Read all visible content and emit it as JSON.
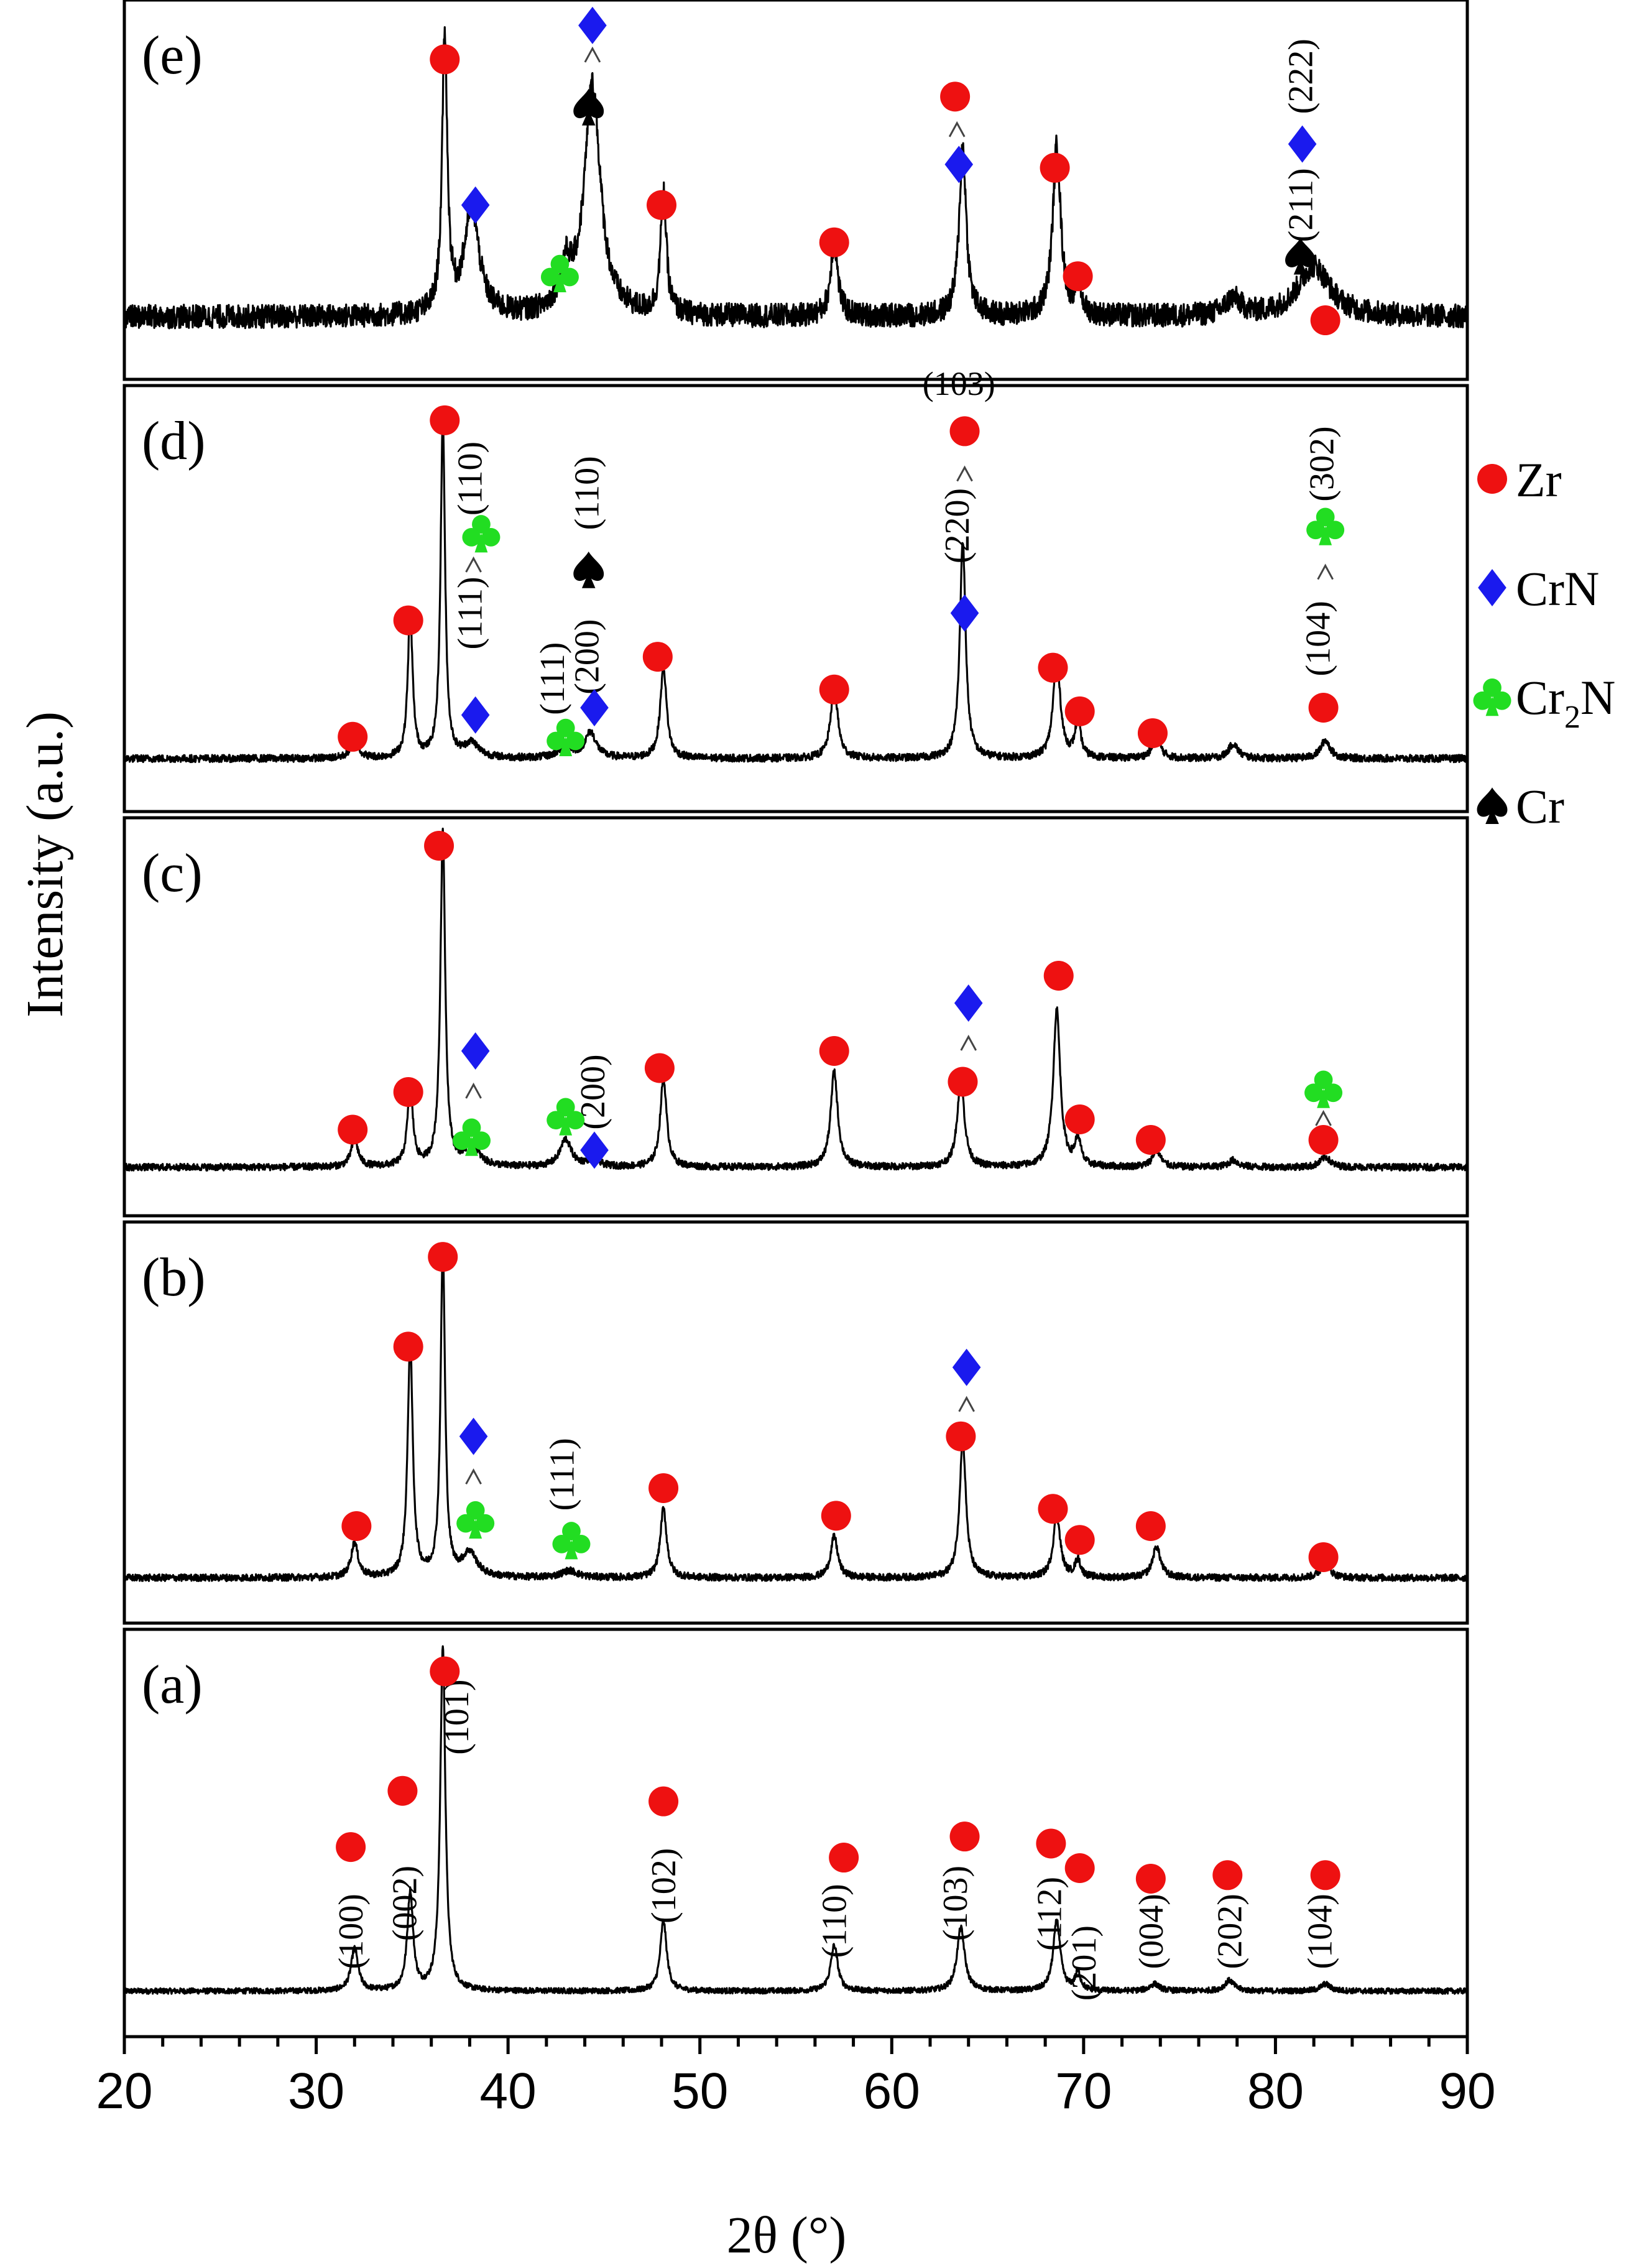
{
  "chart_data": {
    "type": "line",
    "title": "",
    "xlabel": "2θ (°)",
    "ylabel": "Intensity (a.u.)",
    "xlim": [
      20,
      90
    ],
    "xticks": [
      20,
      30,
      40,
      50,
      60,
      70,
      80,
      90
    ],
    "colors": {
      "Zr": "#ee1111",
      "CrN": "#1a1aee",
      "Cr2N": "#22dd22",
      "Cr": "#000000",
      "line": "#000000"
    },
    "legend": {
      "placement": "right",
      "entries": [
        {
          "phase": "Zr",
          "label": "Zr",
          "symbol": "circle"
        },
        {
          "phase": "CrN",
          "label": "CrN",
          "symbol": "diamond"
        },
        {
          "phase": "Cr2N",
          "label": "Cr",
          "sub": "2",
          "tail": "N",
          "symbol": "club"
        },
        {
          "phase": "Cr",
          "label": "Cr",
          "symbol": "spade"
        }
      ]
    },
    "panels": [
      {
        "id": "a",
        "label": "(a)",
        "baseline": 0.05,
        "noise": 0.008,
        "peaks": [
          [
            32.0,
            0.12,
            0.22
          ],
          [
            34.9,
            0.28,
            0.18
          ],
          [
            36.6,
            0.98,
            0.16
          ],
          [
            48.1,
            0.2,
            0.2
          ],
          [
            57.0,
            0.13,
            0.22
          ],
          [
            63.6,
            0.18,
            0.24
          ],
          [
            68.6,
            0.2,
            0.22
          ],
          [
            69.7,
            0.05,
            0.18
          ],
          [
            73.7,
            0.02,
            0.3
          ],
          [
            77.6,
            0.03,
            0.3
          ],
          [
            82.6,
            0.02,
            0.3
          ]
        ],
        "markers": [
          {
            "x": 31.8,
            "y": 0.46,
            "phase": "Zr"
          },
          {
            "x": 34.5,
            "y": 0.62,
            "phase": "Zr"
          },
          {
            "x": 36.7,
            "y": 0.96,
            "phase": "Zr"
          },
          {
            "x": 48.1,
            "y": 0.59,
            "phase": "Zr"
          },
          {
            "x": 57.5,
            "y": 0.43,
            "phase": "Zr"
          },
          {
            "x": 63.8,
            "y": 0.49,
            "phase": "Zr"
          },
          {
            "x": 68.3,
            "y": 0.47,
            "phase": "Zr"
          },
          {
            "x": 69.8,
            "y": 0.4,
            "phase": "Zr"
          },
          {
            "x": 73.5,
            "y": 0.37,
            "phase": "Zr"
          },
          {
            "x": 77.5,
            "y": 0.38,
            "phase": "Zr"
          },
          {
            "x": 82.6,
            "y": 0.38,
            "phase": "Zr"
          }
        ],
        "labels": [
          {
            "x": 32.0,
            "y": 0.22,
            "text": "(100)"
          },
          {
            "x": 34.8,
            "y": 0.3,
            "text": "(002)"
          },
          {
            "x": 37.5,
            "y": 0.83,
            "text": "(101)"
          },
          {
            "x": 48.3,
            "y": 0.35,
            "text": "(102)"
          },
          {
            "x": 57.2,
            "y": 0.25,
            "text": "(110)"
          },
          {
            "x": 63.5,
            "y": 0.3,
            "text": "(103)"
          },
          {
            "x": 68.4,
            "y": 0.27,
            "text": "(112)"
          },
          {
            "x": 70.2,
            "y": 0.13,
            "text": "(201)"
          },
          {
            "x": 73.7,
            "y": 0.22,
            "text": "(004)"
          },
          {
            "x": 77.8,
            "y": 0.22,
            "text": "(202)"
          },
          {
            "x": 82.5,
            "y": 0.22,
            "text": "(104)"
          }
        ],
        "arrows": []
      },
      {
        "id": "b",
        "label": "(b)",
        "baseline": 0.05,
        "noise": 0.01,
        "peaks": [
          [
            32.0,
            0.1,
            0.22
          ],
          [
            34.9,
            0.68,
            0.16
          ],
          [
            36.6,
            0.95,
            0.14
          ],
          [
            38.0,
            0.07,
            0.45
          ],
          [
            43.2,
            0.02,
            0.5
          ],
          [
            48.1,
            0.2,
            0.2
          ],
          [
            57.0,
            0.12,
            0.22
          ],
          [
            63.7,
            0.4,
            0.2
          ],
          [
            68.6,
            0.18,
            0.22
          ],
          [
            69.7,
            0.05,
            0.18
          ],
          [
            73.8,
            0.09,
            0.25
          ],
          [
            82.6,
            0.04,
            0.3
          ]
        ],
        "markers": [
          {
            "x": 32.1,
            "y": 0.2,
            "phase": "Zr"
          },
          {
            "x": 34.8,
            "y": 0.72,
            "phase": "Zr"
          },
          {
            "x": 36.6,
            "y": 0.98,
            "phase": "Zr"
          },
          {
            "x": 38.2,
            "y": 0.46,
            "phase": "CrN"
          },
          {
            "x": 38.3,
            "y": 0.22,
            "phase": "Cr2N"
          },
          {
            "x": 43.3,
            "y": 0.16,
            "phase": "Cr2N"
          },
          {
            "x": 48.1,
            "y": 0.31,
            "phase": "Zr"
          },
          {
            "x": 57.1,
            "y": 0.23,
            "phase": "Zr"
          },
          {
            "x": 63.6,
            "y": 0.46,
            "phase": "Zr"
          },
          {
            "x": 63.9,
            "y": 0.66,
            "phase": "CrN"
          },
          {
            "x": 68.4,
            "y": 0.25,
            "phase": "Zr"
          },
          {
            "x": 69.8,
            "y": 0.16,
            "phase": "Zr"
          },
          {
            "x": 73.5,
            "y": 0.2,
            "phase": "Zr"
          },
          {
            "x": 82.5,
            "y": 0.11,
            "phase": "Zr"
          }
        ],
        "labels": [
          {
            "x": 43.0,
            "y": 0.35,
            "text": "(111)"
          }
        ],
        "arrows": [
          {
            "x": 38.2,
            "y": 0.34
          },
          {
            "x": 63.9,
            "y": 0.55
          }
        ]
      },
      {
        "id": "c",
        "label": "(c)",
        "baseline": 0.06,
        "noise": 0.01,
        "peaks": [
          [
            32.0,
            0.08,
            0.22
          ],
          [
            34.9,
            0.22,
            0.18
          ],
          [
            36.6,
            0.98,
            0.15
          ],
          [
            38.1,
            0.06,
            0.45
          ],
          [
            43.0,
            0.08,
            0.35
          ],
          [
            44.4,
            0.02,
            0.4
          ],
          [
            48.1,
            0.26,
            0.2
          ],
          [
            57.0,
            0.28,
            0.22
          ],
          [
            63.6,
            0.26,
            0.22
          ],
          [
            68.6,
            0.46,
            0.22
          ],
          [
            69.7,
            0.08,
            0.18
          ],
          [
            73.8,
            0.05,
            0.25
          ],
          [
            77.8,
            0.02,
            0.3
          ],
          [
            82.6,
            0.03,
            0.3
          ]
        ],
        "markers": [
          {
            "x": 31.9,
            "y": 0.17,
            "phase": "Zr"
          },
          {
            "x": 34.8,
            "y": 0.28,
            "phase": "Zr"
          },
          {
            "x": 36.4,
            "y": 1.0,
            "phase": "Zr"
          },
          {
            "x": 38.3,
            "y": 0.4,
            "phase": "CrN"
          },
          {
            "x": 38.1,
            "y": 0.15,
            "phase": "Cr2N"
          },
          {
            "x": 43.0,
            "y": 0.21,
            "phase": "Cr2N"
          },
          {
            "x": 44.5,
            "y": 0.11,
            "phase": "CrN"
          },
          {
            "x": 47.9,
            "y": 0.35,
            "phase": "Zr"
          },
          {
            "x": 57.0,
            "y": 0.4,
            "phase": "Zr"
          },
          {
            "x": 63.7,
            "y": 0.31,
            "phase": "Zr"
          },
          {
            "x": 64.0,
            "y": 0.54,
            "phase": "CrN"
          },
          {
            "x": 68.7,
            "y": 0.62,
            "phase": "Zr"
          },
          {
            "x": 69.8,
            "y": 0.2,
            "phase": "Zr"
          },
          {
            "x": 73.5,
            "y": 0.14,
            "phase": "Zr"
          },
          {
            "x": 82.5,
            "y": 0.14,
            "phase": "Zr"
          },
          {
            "x": 82.5,
            "y": 0.29,
            "phase": "Cr2N"
          }
        ],
        "labels": [
          {
            "x": 44.6,
            "y": 0.28,
            "text": "(200)"
          }
        ],
        "arrows": [
          {
            "x": 38.2,
            "y": 0.28
          },
          {
            "x": 64.0,
            "y": 0.42
          },
          {
            "x": 82.5,
            "y": 0.2
          }
        ]
      },
      {
        "id": "d",
        "label": "(d)",
        "baseline": 0.06,
        "noise": 0.01,
        "peaks": [
          [
            32.0,
            0.06,
            0.22
          ],
          [
            34.9,
            0.4,
            0.15
          ],
          [
            36.6,
            0.93,
            0.14
          ],
          [
            38.1,
            0.04,
            0.45
          ],
          [
            43.0,
            0.03,
            0.45
          ],
          [
            44.3,
            0.07,
            0.35
          ],
          [
            48.1,
            0.25,
            0.2
          ],
          [
            57.0,
            0.2,
            0.22
          ],
          [
            63.7,
            0.6,
            0.18
          ],
          [
            68.6,
            0.28,
            0.22
          ],
          [
            69.7,
            0.1,
            0.18
          ],
          [
            73.8,
            0.06,
            0.25
          ],
          [
            77.8,
            0.04,
            0.3
          ],
          [
            82.6,
            0.05,
            0.3
          ]
        ],
        "markers": [
          {
            "x": 31.9,
            "y": 0.12,
            "phase": "Zr"
          },
          {
            "x": 34.8,
            "y": 0.44,
            "phase": "Zr"
          },
          {
            "x": 36.7,
            "y": 0.99,
            "phase": "Zr"
          },
          {
            "x": 38.3,
            "y": 0.18,
            "phase": "CrN"
          },
          {
            "x": 38.6,
            "y": 0.68,
            "phase": "Cr2N"
          },
          {
            "x": 43.0,
            "y": 0.12,
            "phase": "Cr2N"
          },
          {
            "x": 44.5,
            "y": 0.2,
            "phase": "CrN"
          },
          {
            "x": 44.2,
            "y": 0.58,
            "phase": "Cr"
          },
          {
            "x": 47.8,
            "y": 0.34,
            "phase": "Zr"
          },
          {
            "x": 57.0,
            "y": 0.25,
            "phase": "Zr"
          },
          {
            "x": 63.8,
            "y": 0.96,
            "phase": "Zr"
          },
          {
            "x": 63.8,
            "y": 0.46,
            "phase": "CrN"
          },
          {
            "x": 68.4,
            "y": 0.31,
            "phase": "Zr"
          },
          {
            "x": 69.8,
            "y": 0.19,
            "phase": "Zr"
          },
          {
            "x": 73.6,
            "y": 0.13,
            "phase": "Zr"
          },
          {
            "x": 82.5,
            "y": 0.2,
            "phase": "Zr"
          },
          {
            "x": 82.6,
            "y": 0.7,
            "phase": "Cr2N"
          }
        ],
        "labels": [
          {
            "x": 38.2,
            "y": 0.46,
            "text": "(111)"
          },
          {
            "x": 38.2,
            "y": 0.83,
            "text": "(110)"
          },
          {
            "x": 42.5,
            "y": 0.28,
            "text": "(111)"
          },
          {
            "x": 44.3,
            "y": 0.34,
            "text": "(200)"
          },
          {
            "x": 44.3,
            "y": 0.79,
            "text": "(110)"
          },
          {
            "x": 63.6,
            "y": 0.7,
            "text": "(220)"
          },
          {
            "x": 82.4,
            "y": 0.39,
            "text": "(104)"
          },
          {
            "x": 82.6,
            "y": 0.87,
            "text": "(302)"
          }
        ],
        "top_labels": [
          {
            "x": 63.5,
            "y": 1.06,
            "text": "(103)"
          }
        ],
        "arrows": [
          {
            "x": 38.2,
            "y": 0.59
          },
          {
            "x": 63.8,
            "y": 0.84
          },
          {
            "x": 82.6,
            "y": 0.57
          }
        ]
      },
      {
        "id": "e",
        "label": "(e)",
        "baseline": 0.12,
        "noise": 0.035,
        "peaks": [
          [
            36.7,
            0.82,
            0.16
          ],
          [
            38.1,
            0.32,
            0.45
          ],
          [
            43.0,
            0.12,
            0.35
          ],
          [
            44.4,
            0.68,
            0.5
          ],
          [
            48.1,
            0.36,
            0.18
          ],
          [
            57.0,
            0.22,
            0.22
          ],
          [
            63.7,
            0.5,
            0.22
          ],
          [
            68.6,
            0.5,
            0.25
          ],
          [
            69.7,
            0.1,
            0.18
          ],
          [
            77.8,
            0.05,
            0.5
          ],
          [
            82.0,
            0.15,
            1.0
          ]
        ],
        "markers": [
          {
            "x": 36.7,
            "y": 0.88,
            "phase": "Zr"
          },
          {
            "x": 38.3,
            "y": 0.45,
            "phase": "CrN"
          },
          {
            "x": 42.7,
            "y": 0.25,
            "phase": "Cr2N"
          },
          {
            "x": 44.4,
            "y": 0.98,
            "phase": "CrN"
          },
          {
            "x": 44.2,
            "y": 0.74,
            "phase": "Cr"
          },
          {
            "x": 48.0,
            "y": 0.45,
            "phase": "Zr"
          },
          {
            "x": 57.0,
            "y": 0.34,
            "phase": "Zr"
          },
          {
            "x": 63.3,
            "y": 0.77,
            "phase": "Zr"
          },
          {
            "x": 63.5,
            "y": 0.57,
            "phase": "CrN"
          },
          {
            "x": 68.5,
            "y": 0.56,
            "phase": "Zr"
          },
          {
            "x": 69.7,
            "y": 0.24,
            "phase": "Zr"
          },
          {
            "x": 81.4,
            "y": 0.63,
            "phase": "CrN"
          },
          {
            "x": 81.3,
            "y": 0.3,
            "phase": "Cr"
          },
          {
            "x": 82.6,
            "y": 0.11,
            "phase": "Zr"
          }
        ],
        "labels": [
          {
            "x": 81.5,
            "y": 0.45,
            "text": "(211)"
          },
          {
            "x": 81.5,
            "y": 0.83,
            "text": "(222)"
          }
        ],
        "arrows": [
          {
            "x": 44.4,
            "y": 0.89
          },
          {
            "x": 63.4,
            "y": 0.67
          }
        ]
      }
    ]
  }
}
